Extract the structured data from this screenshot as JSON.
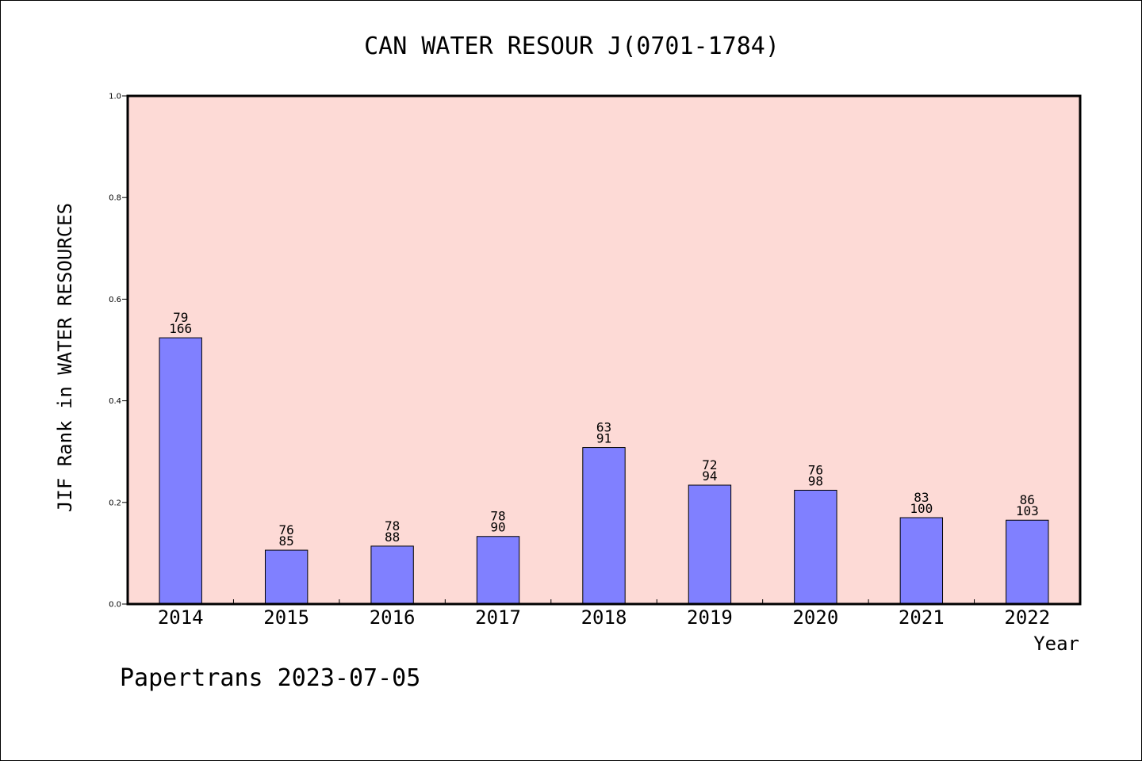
{
  "chart_data": {
    "type": "bar",
    "title": "CAN WATER RESOUR J(0701-1784)",
    "xlabel": "Year",
    "ylabel": "JIF Rank in WATER RESOURCES",
    "ylim": [
      0,
      1.0
    ],
    "yticks": [
      "0.0",
      "0.2",
      "0.4",
      "0.6",
      "0.8",
      "1.0"
    ],
    "categories": [
      "2014",
      "2015",
      "2016",
      "2017",
      "2018",
      "2019",
      "2020",
      "2021",
      "2022"
    ],
    "values": [
      0.524,
      0.106,
      0.114,
      0.133,
      0.308,
      0.234,
      0.224,
      0.17,
      0.165
    ],
    "labels_top": [
      "79",
      "76",
      "78",
      "78",
      "63",
      "72",
      "76",
      "83",
      "86"
    ],
    "labels_bottom": [
      "166",
      "85",
      "88",
      "90",
      "91",
      "94",
      "98",
      "100",
      "103"
    ],
    "grid": false,
    "colors": {
      "plot_background": "#fddad6",
      "bar_fill": "#8080ff",
      "bar_stroke": "#000000"
    }
  },
  "footer": {
    "text": "Papertrans 2023-07-05"
  }
}
